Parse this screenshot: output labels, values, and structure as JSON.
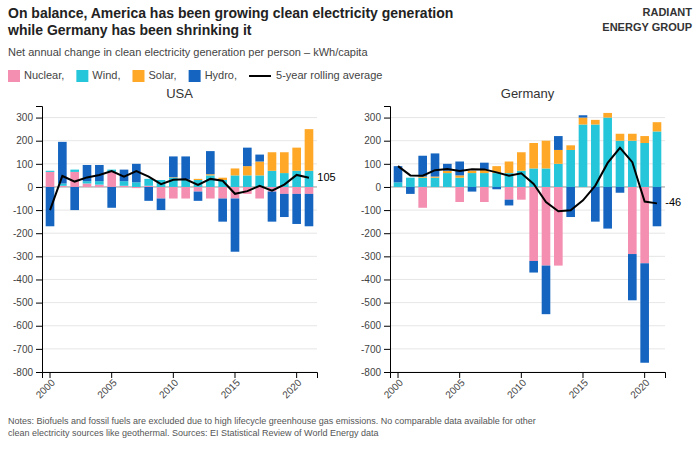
{
  "title": "On balance, America has been growing clean electricity generation\nwhile Germany has been shrinking it",
  "subtitle": "Net annual change in clean electricity generation per person – kWh/capita",
  "note": "Notes: Biofuels and fossil fuels are excluded due to high lifecycle greenhouse gas emissions. No comparable data available for other\nclean electricity sources like geothermal. Sources: EI Statistical Review of World Energy data",
  "logo": "RADIANT\nENERGY GROUP",
  "chart_data": [
    {
      "type": "bar",
      "stacked": true,
      "title": "USA",
      "grid": true,
      "legend": "top",
      "categories": [
        "2000",
        null,
        null,
        null,
        null,
        "2005",
        null,
        null,
        null,
        null,
        "2010",
        null,
        null,
        null,
        null,
        "2015",
        null,
        null,
        null,
        null,
        "2020",
        null
      ],
      "series": [
        {
          "name": "Nuclear, ",
          "color": "#F48FB1",
          "values": [
            65,
            5,
            65,
            15,
            10,
            65,
            5,
            -5,
            5,
            -50,
            -50,
            -50,
            -20,
            -50,
            -50,
            -50,
            -30,
            -50,
            -20,
            -30,
            -30,
            -30
          ]
        },
        {
          "name": "Wind, ",
          "color": "#26C6DA",
          "values": [
            5,
            10,
            10,
            10,
            15,
            10,
            20,
            20,
            30,
            30,
            40,
            30,
            30,
            50,
            30,
            50,
            50,
            50,
            70,
            60,
            70,
            70
          ]
        },
        {
          "name": "Solar, ",
          "color": "#FFA726",
          "values": [
            0,
            0,
            0,
            0,
            0,
            0,
            0,
            0,
            0,
            0,
            2,
            2,
            5,
            5,
            10,
            30,
            40,
            60,
            80,
            90,
            100,
            180
          ]
        },
        {
          "name": "Hydro, ",
          "color": "#1565C0",
          "values": [
            -170,
            180,
            -100,
            70,
            70,
            -90,
            50,
            80,
            -60,
            -50,
            90,
            100,
            -40,
            100,
            -100,
            -230,
            80,
            30,
            -130,
            -100,
            -130,
            -140
          ]
        },
        {
          "name": "5-year rolling average",
          "type": "line",
          "color": "#000000",
          "values": [
            -100,
            47.5,
            23.333333333333332,
            41.25,
            52,
            69,
            45,
            69,
            45,
            12,
            31.4,
            32.8,
            8.8,
            34.8,
            26.8,
            -29.6,
            -18,
            5,
            -16,
            10,
            52,
            40
          ]
        }
      ],
      "annotations": [
        {
          "text": "105"
        }
      ],
      "ylim": [
        -800,
        350
      ],
      "yticks": [
        -800,
        -700,
        -600,
        -500,
        -400,
        -300,
        -200,
        -100,
        0,
        100,
        200,
        300
      ]
    },
    {
      "type": "bar",
      "stacked": true,
      "title": "Germany",
      "grid": true,
      "categories": [
        "2000",
        null,
        null,
        null,
        null,
        "2005",
        null,
        null,
        null,
        null,
        "2010",
        null,
        null,
        null,
        null,
        "2015",
        null,
        null,
        null,
        null,
        "2020",
        null
      ],
      "series": [
        {
          "name": "Nuclear, ",
          "color": "#F48FB1",
          "values": [
            0,
            0,
            -90,
            0,
            0,
            -65,
            0,
            -65,
            0,
            -55,
            -55,
            -320,
            -340,
            -340,
            0,
            0,
            0,
            0,
            0,
            -290,
            -330,
            0
          ]
        },
        {
          "name": "Wind, ",
          "color": "#26C6DA",
          "values": [
            20,
            40,
            40,
            40,
            60,
            40,
            60,
            60,
            60,
            60,
            70,
            80,
            80,
            100,
            160,
            270,
            270,
            300,
            200,
            200,
            190,
            240
          ]
        },
        {
          "name": "Solar, ",
          "color": "#FFA726",
          "values": [
            0,
            0,
            5,
            5,
            10,
            10,
            10,
            15,
            30,
            50,
            80,
            110,
            120,
            60,
            20,
            30,
            20,
            20,
            30,
            30,
            30,
            40
          ]
        },
        {
          "name": "Hydro, ",
          "color": "#1565C0",
          "values": [
            70,
            -30,
            90,
            100,
            30,
            60,
            -20,
            30,
            -10,
            -25,
            0,
            -50,
            -210,
            60,
            -130,
            10,
            -150,
            -180,
            -25,
            -200,
            -430,
            -170
          ]
        },
        {
          "name": "5-year rolling average",
          "type": "line",
          "color": "#000000",
          "values": [
            90,
            50,
            48.333333333333336,
            72.5,
            78,
            69,
            77,
            76,
            63,
            49,
            59,
            13,
            -65,
            -105,
            -101,
            -58,
            6,
            104,
            169,
            107,
            -63,
            -71
          ]
        }
      ],
      "annotations": [
        {
          "text": "-46"
        }
      ],
      "ylim": [
        -800,
        350
      ],
      "yticks": [
        -800,
        -700,
        -600,
        -500,
        -400,
        -300,
        -200,
        -100,
        0,
        100,
        200,
        300
      ]
    }
  ]
}
